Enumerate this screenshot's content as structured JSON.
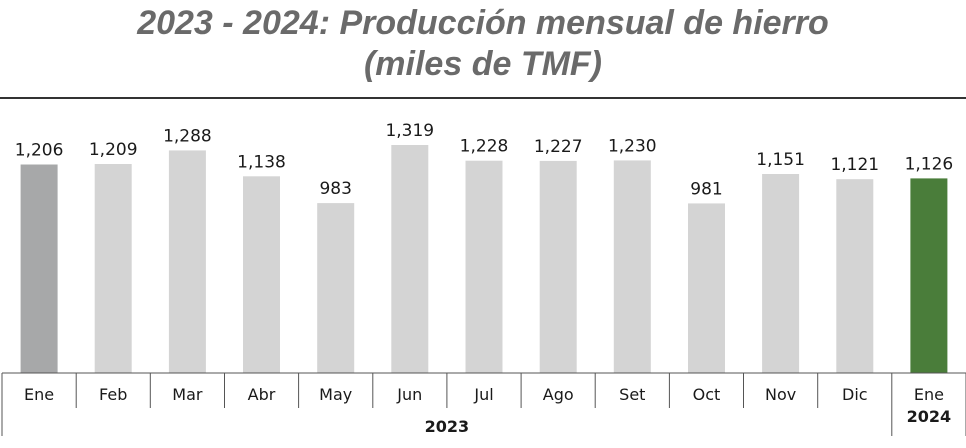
{
  "chart_data": {
    "type": "bar",
    "title": "2023 - 2024: Producción mensual de hierro",
    "subtitle": "(miles de TMF)",
    "categories": [
      "Ene",
      "Feb",
      "Mar",
      "Abr",
      "May",
      "Jun",
      "Jul",
      "Ago",
      "Set",
      "Oct",
      "Nov",
      "Dic",
      "Ene"
    ],
    "values": [
      1206,
      1209,
      1288,
      1138,
      983,
      1319,
      1228,
      1227,
      1230,
      981,
      1151,
      1121,
      1126
    ],
    "value_labels": [
      "1,206",
      "1,209",
      "1,288",
      "1,138",
      "983",
      "1,319",
      "1,228",
      "1,227",
      "1,230",
      "981",
      "1,151",
      "1,121",
      "1,126"
    ],
    "groups": [
      {
        "label": "2023",
        "count": 12
      },
      {
        "label": "2024",
        "count": 1
      }
    ],
    "ylim": [
      0,
      1319
    ],
    "grid": false,
    "colors": {
      "first_bar": "#a7a8a9",
      "bar": "#d4d4d4",
      "highlight_bar": "#4a7d3a",
      "title": "#6a6a6a",
      "axis": "#555555"
    }
  }
}
